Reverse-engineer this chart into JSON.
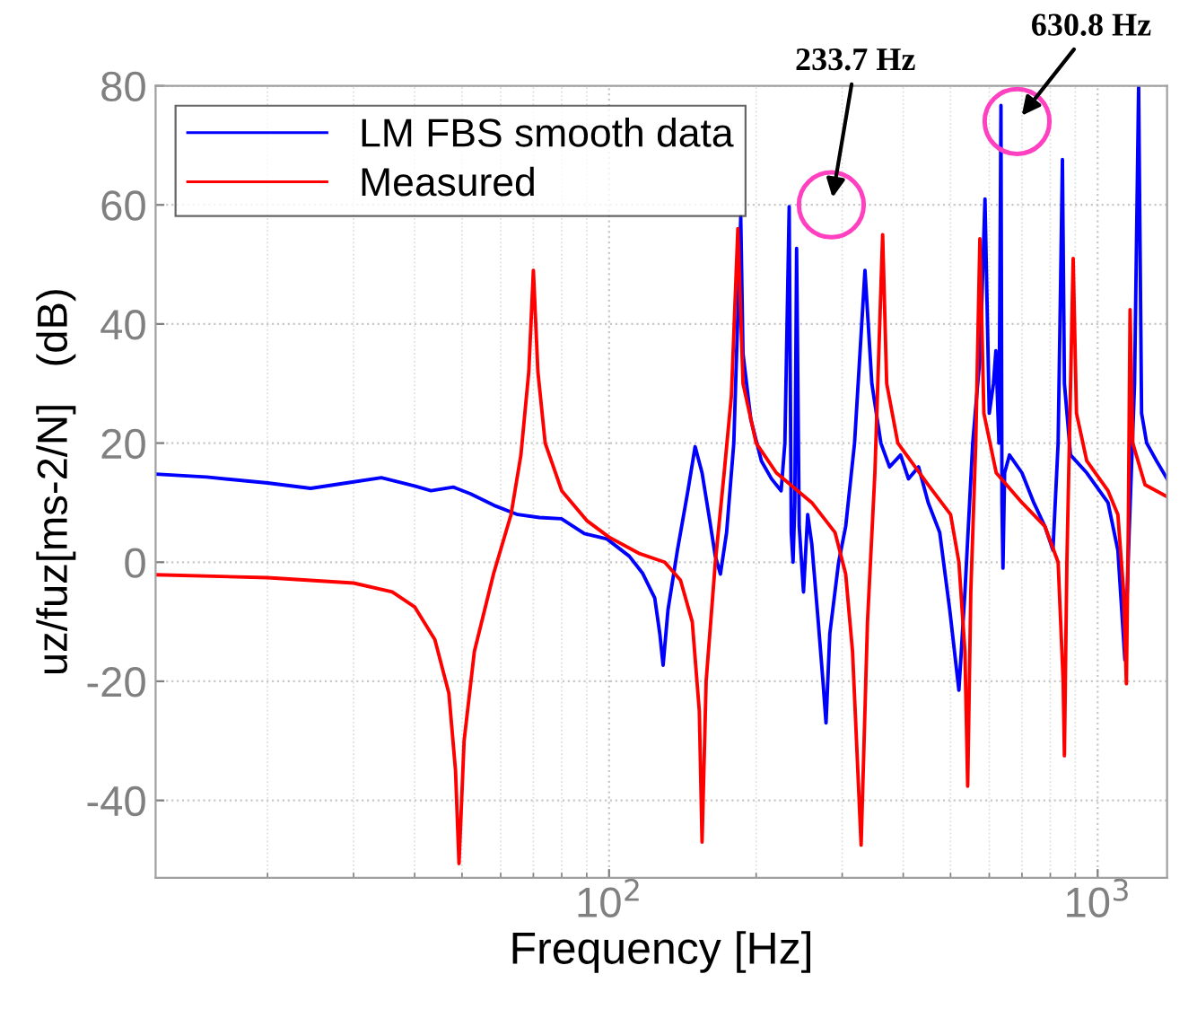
{
  "chart_data": {
    "type": "line",
    "xlabel": "Frequency [Hz]",
    "ylabel": "uz/fuz[ms-2/N]   (dB)",
    "log": "x",
    "xlim": [
      11.8,
      1387
    ],
    "ylim": [
      -53,
      80
    ],
    "xticks": [
      {
        "value": 100,
        "label": "10$^{2}$"
      },
      {
        "value": 1000,
        "label": "10$^{3}$"
      }
    ],
    "yticks": [
      -40,
      -20,
      0,
      20,
      40,
      60,
      80
    ],
    "grid": true,
    "legend": "top left",
    "line_style": "solid",
    "marker": "none",
    "annotations": [
      {
        "text": "233.7 Hz",
        "x": 285,
        "y": 60
      },
      {
        "text": "630.8 Hz",
        "x": 684,
        "y": 74
      }
    ],
    "series": [
      {
        "name": "LM FBS smooth data",
        "color": "#0000ff",
        "x": [
          11.8,
          15,
          20,
          24.5,
          29,
          34.2,
          40,
          43.2,
          48,
          52,
          58.7,
          65,
          72,
          79.9,
          89,
          99,
          110,
          117,
          124,
          127,
          129,
          132,
          138,
          145,
          150,
          155,
          160,
          165,
          169,
          174,
          180,
          184,
          186,
          188,
          195,
          205,
          215,
          225,
          229,
          233.7,
          236,
          238,
          240,
          242,
          245,
          250,
          255,
          260,
          268,
          274,
          278,
          283,
          295,
          305,
          318,
          334,
          345,
          360,
          375,
          395,
          410,
          430,
          450,
          475,
          498,
          520,
          535,
          555,
          575,
          588,
          600,
          612,
          619,
          628,
          634,
          637,
          640,
          645,
          660,
          700,
          740,
          780,
          810,
          830,
          840,
          847,
          855,
          880,
          950,
          1050,
          1100,
          1137,
          1160,
          1190,
          1213,
          1230,
          1260,
          1320,
          1387
        ],
        "values": [
          14.8,
          14.3,
          13.3,
          12.4,
          13.3,
          14.2,
          12.8,
          12,
          12.6,
          11.5,
          9.4,
          8,
          7.5,
          7.3,
          4.8,
          3.9,
          1,
          -1.8,
          -6,
          -12,
          -17.3,
          -8,
          2,
          12,
          19.4,
          15,
          8,
          1,
          -2,
          5,
          20,
          45,
          58,
          35,
          24,
          17,
          14,
          12,
          20,
          59.7,
          5,
          0,
          10,
          52.7,
          6,
          -5,
          8,
          3,
          -10,
          -20,
          -27,
          -12,
          0,
          6,
          20,
          49,
          30,
          20,
          16,
          18,
          14,
          16,
          10,
          5,
          -8,
          -21.5,
          -5,
          20,
          35,
          61,
          25,
          30,
          35.5,
          20,
          76.7,
          10,
          -1,
          15,
          18,
          15,
          10,
          6,
          2,
          20,
          47.6,
          67.6,
          30,
          18,
          15,
          10,
          2,
          -16.4,
          5,
          30,
          80,
          25,
          20,
          17,
          14
        ]
      },
      {
        "name": "Measured",
        "color": "#ff0000",
        "x": [
          11.8,
          20,
          30,
          36,
          40,
          44,
          47,
          48.5,
          49.3,
          50.5,
          53,
          58,
          63,
          66,
          68.5,
          70,
          71.5,
          74,
          80,
          90,
          100,
          115,
          130,
          140,
          148,
          153,
          155,
          158,
          165,
          172,
          178,
          183.5,
          188,
          200,
          220,
          260,
          290,
          305,
          315,
          328,
          338,
          350,
          363,
          370,
          390,
          450,
          500,
          520,
          535,
          542,
          550,
          563,
          574,
          585,
          620,
          700,
          780,
          830,
          850,
          855,
          865,
          891,
          905,
          950,
          1050,
          1100,
          1130,
          1145,
          1155,
          1165,
          1180,
          1250,
          1387
        ],
        "values": [
          -2.1,
          -2.6,
          -3.5,
          -5,
          -7.5,
          -13,
          -22,
          -35,
          -50.6,
          -30,
          -15,
          -2,
          8,
          18,
          32,
          49,
          32,
          20,
          12,
          7,
          4.2,
          1.5,
          0,
          -3,
          -10,
          -25,
          -47,
          -20,
          0,
          15,
          28,
          56,
          30,
          20,
          15,
          10,
          5,
          -2,
          -15,
          -47.5,
          -10,
          15,
          55,
          30,
          20,
          13,
          8,
          0,
          -15,
          -37.6,
          -5,
          20,
          54.3,
          25,
          15,
          10,
          6,
          0,
          -20,
          -32.5,
          0,
          51,
          25,
          17,
          12,
          8,
          -5,
          -20.4,
          5,
          42.4,
          20,
          13,
          11
        ]
      }
    ]
  }
}
